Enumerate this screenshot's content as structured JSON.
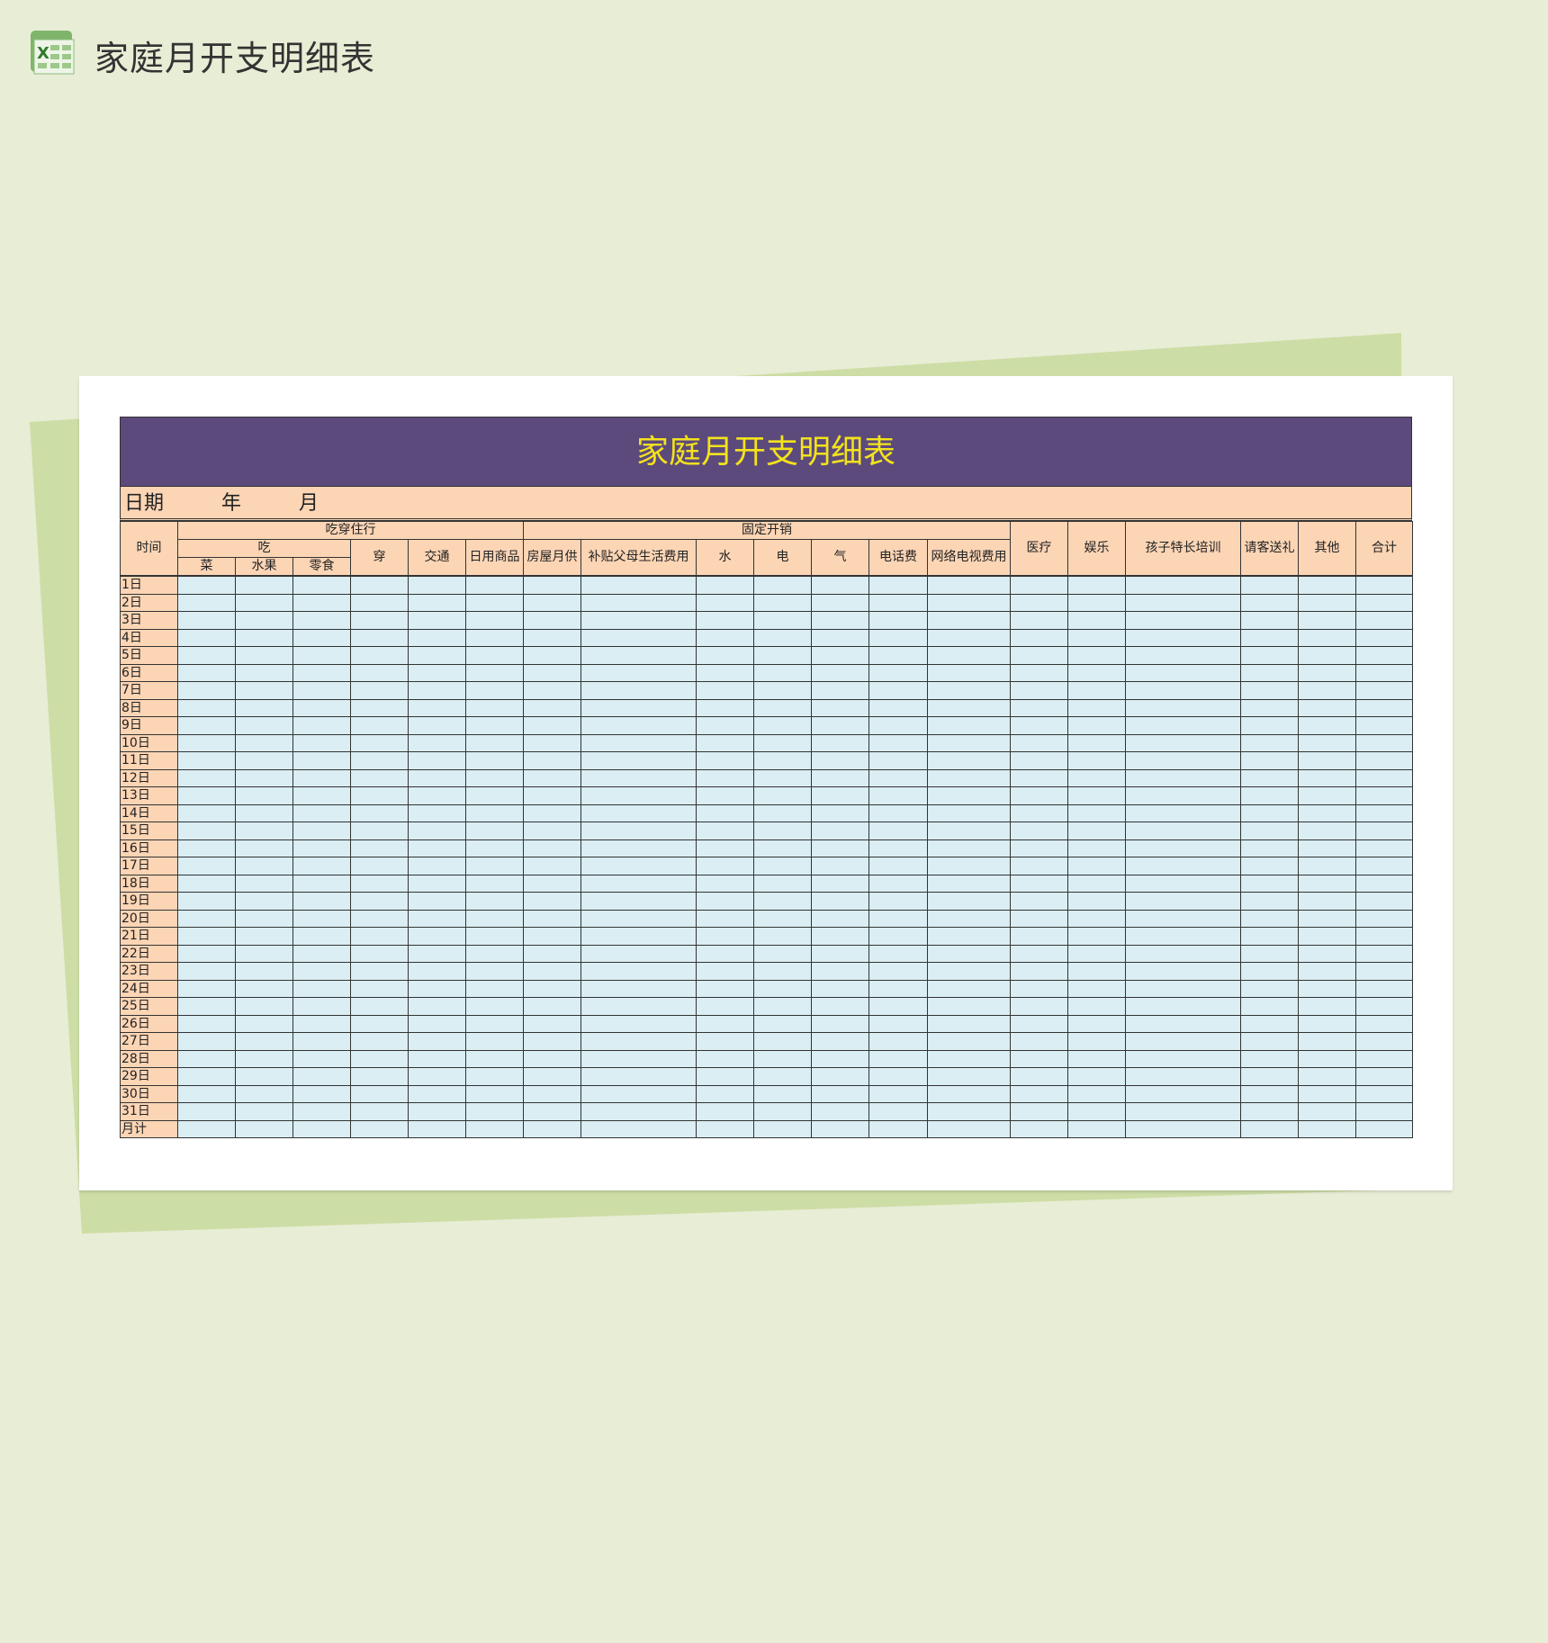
{
  "app": {
    "title": "家庭月开支明细表",
    "icon": "excel-icon"
  },
  "sheet": {
    "title": "家庭月开支明细表",
    "date_label": "日期",
    "year_label": "年",
    "month_label": "月",
    "header": {
      "time": "时间",
      "group_living": "吃穿住行",
      "eat": "吃",
      "vegetables": "菜",
      "fruit": "水果",
      "snacks": "零食",
      "clothes": "穿",
      "transport": "交通",
      "daily_goods": "日用商品",
      "group_fixed": "固定开销",
      "mortgage": "房屋月供",
      "parents_support": "补贴父母生活费用",
      "water": "水",
      "electricity": "电",
      "gas": "气",
      "phone": "电话费",
      "internet_tv": "网络电视费用",
      "medical": "医疗",
      "entertainment": "娱乐",
      "child_training": "孩子特长培训",
      "gifts": "请客送礼",
      "other": "其他",
      "total": "合计"
    },
    "rows": [
      "1日",
      "2日",
      "3日",
      "4日",
      "5日",
      "6日",
      "7日",
      "8日",
      "9日",
      "10日",
      "11日",
      "12日",
      "13日",
      "14日",
      "15日",
      "16日",
      "17日",
      "18日",
      "19日",
      "20日",
      "21日",
      "22日",
      "23日",
      "24日",
      "25日",
      "26日",
      "27日",
      "28日",
      "29日",
      "30日",
      "31日",
      "月计"
    ]
  },
  "colors": {
    "title_band": "#5c4a7c",
    "title_text": "#f3e21c",
    "header_bg": "#fcd5b5",
    "cell_bg": "#daeef3",
    "page_bg": "#e8edd5",
    "back_sheet": "#cddda6"
  }
}
